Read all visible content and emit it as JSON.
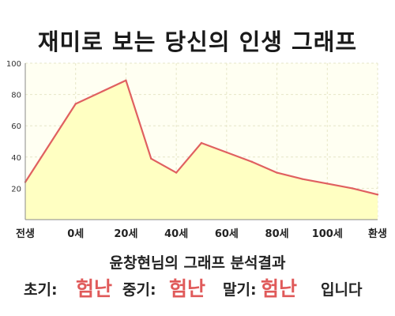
{
  "title": "재미로 보는 당신의 인생 그래프",
  "chart_data": {
    "type": "area",
    "x_ticks": [
      {
        "x": 0,
        "label": "전생"
      },
      {
        "x": 10,
        "label": "0세"
      },
      {
        "x": 20,
        "label": "20세"
      },
      {
        "x": 30,
        "label": "40세"
      },
      {
        "x": 40,
        "label": "60세"
      },
      {
        "x": 50,
        "label": "80세"
      },
      {
        "x": 60,
        "label": "100세"
      },
      {
        "x": 70,
        "label": "환생"
      }
    ],
    "x": [
      0,
      10,
      20,
      25,
      30,
      35,
      40,
      45,
      50,
      55,
      60,
      65,
      70
    ],
    "values": [
      24,
      74,
      89,
      39,
      30,
      49,
      43,
      37,
      30,
      26,
      23,
      20,
      16
    ],
    "xlim": [
      0,
      70
    ],
    "ylim": [
      0,
      100
    ],
    "y_ticks": [
      20,
      40,
      60,
      80,
      100
    ],
    "grid": true,
    "line_color": "#e06060",
    "fill_color": "#ffffc2"
  },
  "result": {
    "heading": "윤창현님의 그래프 분석결과",
    "early_label": "초기:",
    "early_value": "험난",
    "middle_label": "중기:",
    "middle_value": "험난",
    "late_label": "말기:",
    "late_value": "험난",
    "suffix": "입니다"
  }
}
